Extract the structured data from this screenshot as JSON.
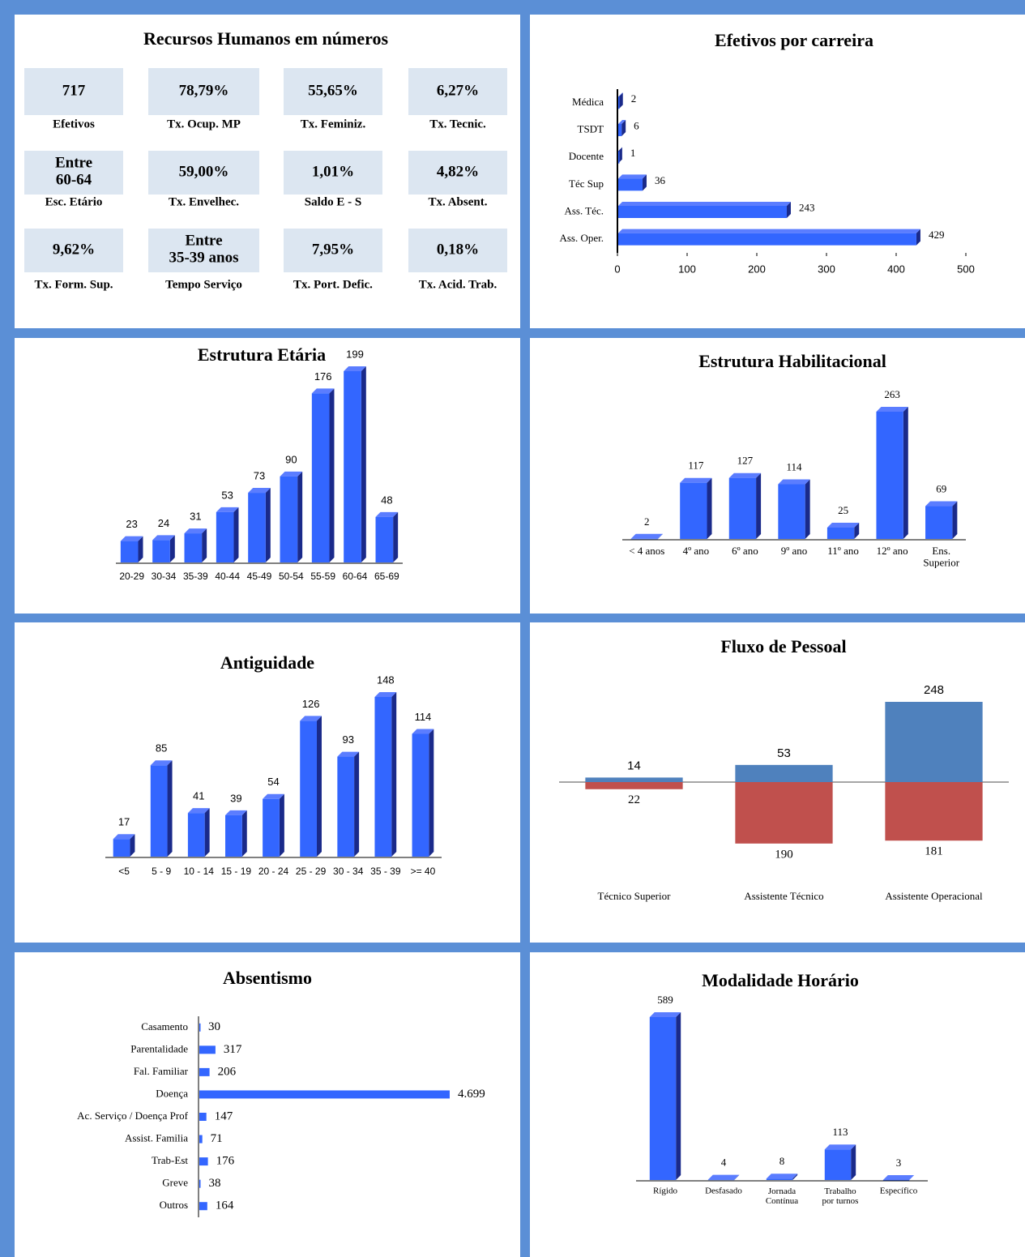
{
  "summary": {
    "title": "Recursos Humanos em números",
    "items": [
      {
        "value": "717",
        "label": "Efetivos"
      },
      {
        "value": "78,79%",
        "label": "Tx. Ocup. MP"
      },
      {
        "value": "55,65%",
        "label": "Tx. Feminiz."
      },
      {
        "value": "6,27%",
        "label": "Tx. Tecnic."
      },
      {
        "value": "Entre\n60-64",
        "label": "Esc. Etário"
      },
      {
        "value": "59,00%",
        "label": "Tx. Envelhec."
      },
      {
        "value": "1,01%",
        "label": "Saldo E - S"
      },
      {
        "value": "4,82%",
        "label": "Tx. Absent."
      },
      {
        "value": "9,62%",
        "label": "Tx. Form. Sup."
      },
      {
        "value": "Entre\n35-39 anos",
        "label": "Tempo Serviço"
      },
      {
        "value": "7,95%",
        "label": "Tx. Port. Defic."
      },
      {
        "value": "0,18%",
        "label": "Tx. Acid. Trab."
      }
    ]
  },
  "chart_data": [
    {
      "type": "hbar",
      "title": "Efetivos por carreira",
      "categories": [
        "Médica",
        "TSDT",
        "Docente",
        "Téc Sup",
        "Ass. Téc.",
        "Ass. Oper."
      ],
      "values": [
        2,
        6,
        1,
        36,
        243,
        429
      ],
      "color": "#3366ff",
      "xlim": [
        0,
        500
      ],
      "xticks": [
        0,
        100,
        200,
        300,
        400,
        500
      ]
    },
    {
      "type": "bar",
      "title": "Estrutura Etária",
      "categories": [
        "20-29",
        "30-34",
        "35-39",
        "40-44",
        "45-49",
        "50-54",
        "55-59",
        "60-64",
        "65-69"
      ],
      "values": [
        23,
        24,
        31,
        53,
        73,
        90,
        176,
        199,
        48
      ],
      "color": "#3366ff"
    },
    {
      "type": "bar",
      "title": "Estrutura Habilitacional",
      "categories": [
        "< 4 anos",
        "4º ano",
        "6º ano",
        "9º ano",
        "11º ano",
        "12º ano",
        "Ens.\nSuperior"
      ],
      "values": [
        2,
        117,
        127,
        114,
        25,
        263,
        69
      ],
      "color": "#3366ff"
    },
    {
      "type": "bar",
      "title": "Antiguidade",
      "categories": [
        "<5",
        "5 - 9",
        "10 - 14",
        "15 - 19",
        "20 - 24",
        "25 - 29",
        "30 - 34",
        "35 - 39",
        ">= 40"
      ],
      "values": [
        17,
        85,
        41,
        39,
        54,
        126,
        93,
        148,
        114
      ],
      "color": "#3366ff"
    },
    {
      "type": "bar",
      "title": "Fluxo de Pessoal",
      "categories": [
        "Técnico Superior",
        "Assistente Técnico",
        "Assistente Operacional"
      ],
      "series": [
        {
          "color": "#4f81bd",
          "values": [
            14,
            53,
            248
          ]
        },
        {
          "color": "#c0504d",
          "values": [
            -22,
            -190,
            -181
          ],
          "value_labels": [
            "22",
            "190",
            "181"
          ]
        }
      ]
    },
    {
      "type": "hbar",
      "title": "Absentismo",
      "categories": [
        "Casamento",
        "Parentalidade",
        "Fal. Familiar",
        "Doença",
        "Ac. Serviço / Doença Prof",
        "Assist. Familia",
        "Trab-Est",
        "Greve",
        "Outros"
      ],
      "values": [
        30,
        317,
        206,
        4699,
        147,
        71,
        176,
        38,
        164
      ],
      "value_labels": [
        "30",
        "317",
        "206",
        "4.699",
        "147",
        "71",
        "176",
        "38",
        "164"
      ],
      "color": "#3366ff"
    },
    {
      "type": "bar",
      "title": "Modalidade Horário",
      "categories": [
        "Rígido",
        "Desfasado",
        "Jornada\nContínua",
        "Trabalho\npor turnos",
        "Específico"
      ],
      "values": [
        589,
        4,
        8,
        113,
        3
      ],
      "color": "#3366ff"
    }
  ]
}
